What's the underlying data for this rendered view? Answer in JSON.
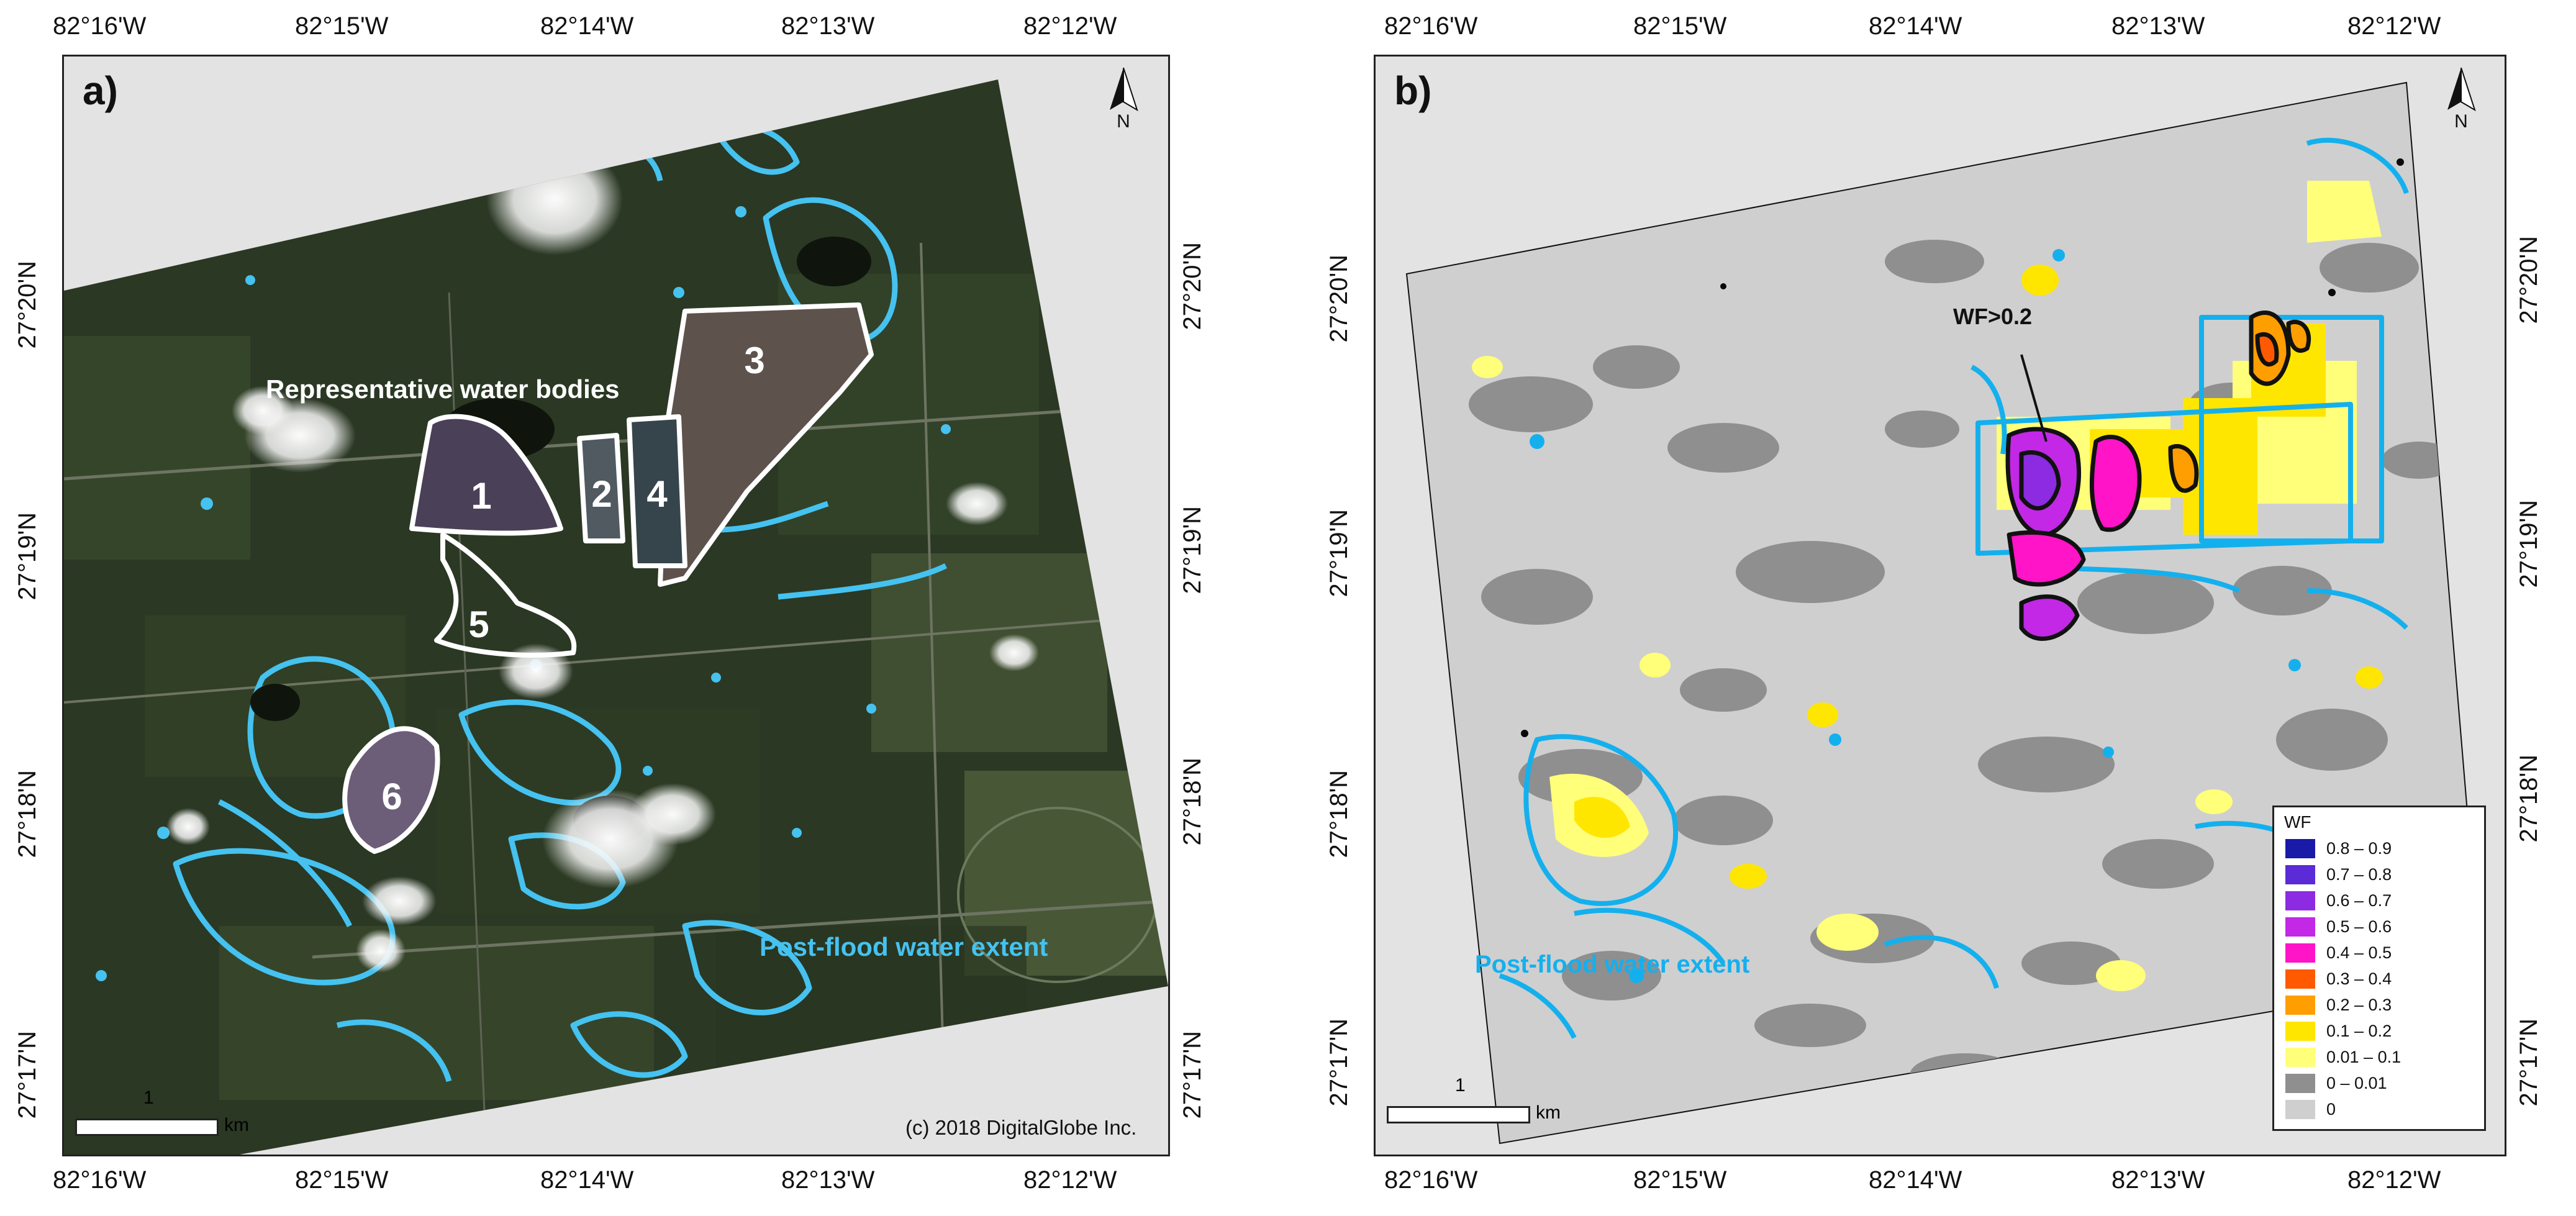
{
  "panel_a": {
    "letter": "a)",
    "top_lon_labels": [
      "82°16'W",
      "82°15'W",
      "82°14'W",
      "82°13'W",
      "82°12'W"
    ],
    "bottom_lon_labels": [
      "82°16'W",
      "82°15'W",
      "82°14'W",
      "82°13'W",
      "82°12'W"
    ],
    "left_lat_labels": [
      "27°20'N",
      "27°19'N",
      "27°18'N",
      "27°17'N"
    ],
    "right_lat_labels": [
      "27°20'N",
      "27°19'N",
      "27°18'N",
      "27°17'N"
    ],
    "north_label": "N",
    "scale_value": "1",
    "scale_unit": "km",
    "copyright": "(c) 2018 DigitalGlobe Inc.",
    "annotation_water_bodies": "Representative water bodies",
    "annotation_flood_extent": "Post-flood water extent",
    "water_body_labels": [
      "1",
      "2",
      "3",
      "4",
      "5",
      "6"
    ]
  },
  "panel_b": {
    "letter": "b)",
    "top_lon_labels": [
      "82°16'W",
      "82°15'W",
      "82°14'W",
      "82°13'W",
      "82°12'W"
    ],
    "bottom_lon_labels": [
      "82°16'W",
      "82°15'W",
      "82°14'W",
      "82°13'W",
      "82°12'W"
    ],
    "left_lat_labels": [
      "27°20'N",
      "27°19'N",
      "27°18'N",
      "27°17'N"
    ],
    "right_lat_labels": [
      "27°20'N",
      "27°19'N",
      "27°18'N",
      "27°17'N"
    ],
    "north_label": "N",
    "scale_value": "1",
    "scale_unit": "km",
    "annotation_wf": "WF>0.2",
    "annotation_flood_extent": "Post-flood water extent",
    "legend": {
      "title": "WF",
      "items": [
        {
          "label": "0.8 – 0.9",
          "color": "#1a1aa8"
        },
        {
          "label": "0.7 – 0.8",
          "color": "#5a2bd6"
        },
        {
          "label": "0.6 – 0.7",
          "color": "#8c2be2"
        },
        {
          "label": "0.5 – 0.6",
          "color": "#c228e6"
        },
        {
          "label": "0.4 – 0.5",
          "color": "#ff14c8"
        },
        {
          "label": "0.3 – 0.4",
          "color": "#ff5a00"
        },
        {
          "label": "0.2 – 0.3",
          "color": "#ff9e00"
        },
        {
          "label": "0.1 – 0.2",
          "color": "#ffe600"
        },
        {
          "label": "0.01 – 0.1",
          "color": "#ffff7a"
        },
        {
          "label": "0 – 0.01",
          "color": "#8f8f8f"
        },
        {
          "label": "0",
          "color": "#cfcfcf"
        }
      ]
    }
  },
  "colors": {
    "flood_extent": "#45c2f0",
    "flood_extent_b": "#14b0ee",
    "imagery_dark": "#25301f",
    "imagery_green": "#3b4a2c",
    "background_gray": "#cfcfcf"
  }
}
